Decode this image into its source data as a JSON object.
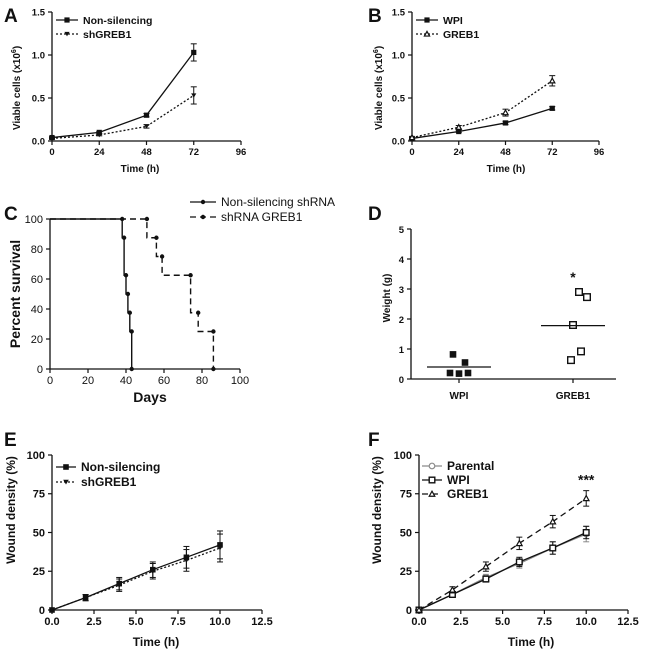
{
  "chart_data": [
    {
      "panel": "A",
      "type": "line",
      "xlabel": "Time (h)",
      "ylabel": "Viable cells (x10",
      "ylabel_sup": "6",
      "ylabel_close": ")",
      "xlim": [
        0,
        96
      ],
      "ylim": [
        0,
        1.5
      ],
      "xticks": [
        "0",
        "24",
        "48",
        "72",
        "96"
      ],
      "yticks": [
        "0.0",
        "0.5",
        "1.0",
        "1.5"
      ],
      "series": [
        {
          "name": "Non-silencing",
          "style": "solid",
          "marker": "square",
          "x": [
            0,
            24,
            48,
            72
          ],
          "y": [
            0.04,
            0.1,
            0.3,
            1.03
          ],
          "err": [
            0.01,
            0.01,
            0.02,
            0.1
          ]
        },
        {
          "name": "shGREB1",
          "style": "dotted",
          "marker": "triangle-down",
          "x": [
            0,
            24,
            48,
            72
          ],
          "y": [
            0.03,
            0.07,
            0.17,
            0.53
          ],
          "err": [
            0.01,
            0.01,
            0.02,
            0.1
          ]
        }
      ]
    },
    {
      "panel": "B",
      "type": "line",
      "xlabel": "Time (h)",
      "ylabel": "Viable cells (x10",
      "ylabel_sup": "6",
      "ylabel_close": ")",
      "xlim": [
        0,
        96
      ],
      "ylim": [
        0,
        1.5
      ],
      "xticks": [
        "0",
        "24",
        "48",
        "72",
        "96"
      ],
      "yticks": [
        "0.0",
        "0.5",
        "1.0",
        "1.5"
      ],
      "series": [
        {
          "name": "WPI",
          "style": "solid",
          "marker": "square",
          "x": [
            0,
            24,
            48,
            72
          ],
          "y": [
            0.03,
            0.11,
            0.21,
            0.38
          ],
          "err": [
            0.01,
            0.01,
            0.02,
            0.02
          ]
        },
        {
          "name": "GREB1",
          "style": "dotted",
          "marker": "triangle-open",
          "x": [
            0,
            24,
            48,
            72
          ],
          "y": [
            0.04,
            0.16,
            0.33,
            0.7
          ],
          "err": [
            0.01,
            0.02,
            0.04,
            0.06
          ]
        }
      ]
    },
    {
      "panel": "C",
      "type": "line",
      "subtype": "survival-step",
      "xlabel": "Days",
      "ylabel": "Percent survival",
      "xlim": [
        0,
        100
      ],
      "ylim": [
        0,
        100
      ],
      "xticks": [
        "0",
        "20",
        "40",
        "60",
        "80",
        "100"
      ],
      "yticks": [
        "0",
        "20",
        "40",
        "60",
        "80",
        "100"
      ],
      "series": [
        {
          "name": "Non-silencing shRNA",
          "style": "solid",
          "x": [
            0,
            38,
            39,
            40,
            41,
            42,
            43
          ],
          "y": [
            100,
            87.5,
            62.5,
            50,
            37.5,
            25,
            0
          ]
        },
        {
          "name": "shRNA GREB1",
          "style": "dashed",
          "x": [
            0,
            51,
            56,
            59,
            74,
            78,
            86
          ],
          "y": [
            100,
            87.5,
            75,
            62.5,
            37.5,
            25,
            0
          ]
        }
      ]
    },
    {
      "panel": "D",
      "type": "scatter",
      "ylabel": "Weight (g)",
      "ylim": [
        0,
        5
      ],
      "yticks": [
        "0",
        "1",
        "2",
        "3",
        "4",
        "5"
      ],
      "categories": [
        "WPI",
        "GREB1"
      ],
      "points": [
        {
          "group": "WPI",
          "marker": "square-filled",
          "values": [
            0.82,
            0.55,
            0.2,
            0.18,
            0.2
          ]
        },
        {
          "group": "GREB1",
          "marker": "square-open",
          "values": [
            2.9,
            2.73,
            1.8,
            0.92,
            0.63
          ]
        }
      ],
      "medians": [
        0.4,
        1.78
      ],
      "annotations": [
        {
          "group": "GREB1",
          "text": "*"
        }
      ]
    },
    {
      "panel": "E",
      "type": "line",
      "xlabel": "Time (h)",
      "ylabel": "Wound density (%)",
      "xlim": [
        0,
        12.5
      ],
      "ylim": [
        0,
        100
      ],
      "xticks": [
        "0.0",
        "2.5",
        "5.0",
        "7.5",
        "10.0",
        "12.5"
      ],
      "yticks": [
        "0",
        "25",
        "50",
        "75",
        "100"
      ],
      "series": [
        {
          "name": "Non-silencing",
          "style": "solid",
          "marker": "square",
          "x": [
            0,
            2,
            4,
            6,
            8,
            10
          ],
          "y": [
            0,
            8,
            17,
            26,
            34,
            42
          ],
          "err": [
            0,
            2,
            4,
            5,
            7,
            9
          ]
        },
        {
          "name": "shGREB1",
          "style": "dotted",
          "marker": "triangle-down",
          "x": [
            0,
            2,
            4,
            6,
            8,
            10
          ],
          "y": [
            0,
            8,
            16,
            25,
            32,
            40
          ],
          "err": [
            0,
            2,
            4,
            5,
            7,
            9
          ]
        }
      ]
    },
    {
      "panel": "F",
      "type": "line",
      "xlabel": "Time (h)",
      "ylabel": "Wound density (%)",
      "xlim": [
        0,
        12.5
      ],
      "ylim": [
        0,
        100
      ],
      "xticks": [
        "0.0",
        "2.5",
        "5.0",
        "7.5",
        "10.0",
        "12.5"
      ],
      "yticks": [
        "0",
        "25",
        "50",
        "75",
        "100"
      ],
      "series": [
        {
          "name": "Parental",
          "style": "solid-grey",
          "marker": "circle-open",
          "x": [
            0,
            2,
            4,
            6,
            8,
            10
          ],
          "y": [
            0,
            10,
            21,
            30,
            40,
            49
          ],
          "err": [
            0,
            1.5,
            2,
            3,
            4,
            5
          ]
        },
        {
          "name": "WPI",
          "style": "solid",
          "marker": "square-open",
          "x": [
            0,
            2,
            4,
            6,
            8,
            10
          ],
          "y": [
            0,
            10,
            20,
            31,
            40,
            50
          ],
          "err": [
            0,
            1.5,
            2,
            3,
            4,
            4
          ]
        },
        {
          "name": "GREB1",
          "style": "dashed",
          "marker": "triangle-open",
          "x": [
            0,
            2,
            4,
            6,
            8,
            10
          ],
          "y": [
            0,
            13,
            28,
            43,
            57,
            72
          ],
          "err": [
            0,
            2,
            3,
            4,
            4,
            5
          ]
        }
      ],
      "annotations": [
        {
          "x": 10,
          "text": "***"
        }
      ]
    }
  ]
}
